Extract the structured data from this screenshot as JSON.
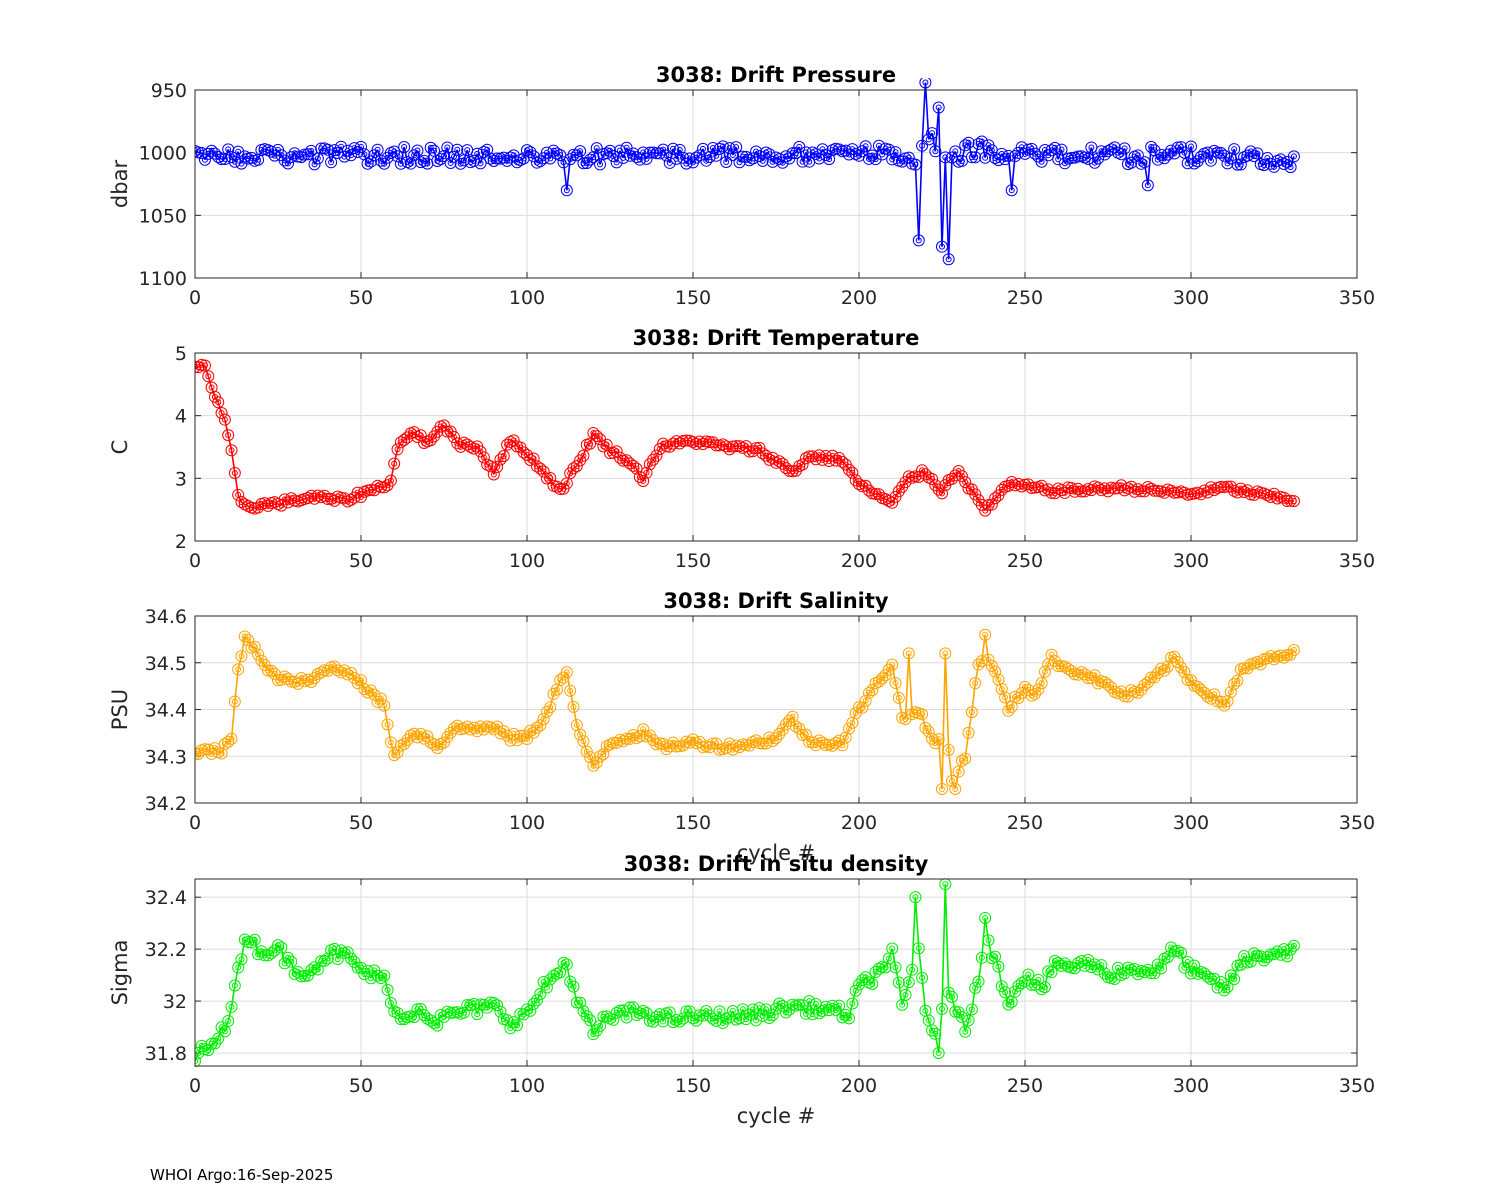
{
  "footer": "WHOI Argo:16-Sep-2025",
  "chart_data": [
    {
      "type": "line",
      "title": "3038: Drift Pressure",
      "xlabel": "",
      "ylabel": "dbar",
      "xlim": [
        0,
        350
      ],
      "ylim": [
        950,
        1100
      ],
      "reversed_y": true,
      "xticks": [
        0,
        50,
        100,
        150,
        200,
        250,
        300,
        350
      ],
      "yticks": [
        950,
        1000,
        1050,
        1100
      ],
      "ytick_labels": [
        "950",
        "1000",
        "1050",
        "1100"
      ],
      "color": "#0000ff",
      "grid": true,
      "series": {
        "cycles": [
          0,
          331
        ],
        "base_curve": [
          [
            0,
            1004
          ],
          [
            50,
            1002
          ],
          [
            100,
            1003
          ],
          [
            150,
            1002
          ],
          [
            200,
            1001
          ],
          [
            210,
            1000
          ],
          [
            218,
            1005
          ],
          [
            222,
            990
          ],
          [
            226,
            1005
          ],
          [
            235,
            997
          ],
          [
            250,
            1003
          ],
          [
            300,
            1002
          ],
          [
            331,
            1006
          ]
        ],
        "noise": 7,
        "spikes": [
          [
            218,
            1070
          ],
          [
            220,
            944
          ],
          [
            225,
            1075
          ],
          [
            227,
            1085
          ],
          [
            224,
            964
          ],
          [
            246,
            1030
          ],
          [
            112,
            1030
          ],
          [
            287,
            1026
          ]
        ]
      }
    },
    {
      "type": "line",
      "title": "3038: Drift Temperature",
      "xlabel": "",
      "ylabel": "C",
      "xlim": [
        0,
        350
      ],
      "ylim": [
        2,
        5
      ],
      "reversed_y": false,
      "xticks": [
        0,
        50,
        100,
        150,
        200,
        250,
        300,
        350
      ],
      "yticks": [
        2,
        3,
        4,
        5
      ],
      "ytick_labels": [
        "2",
        "3",
        "4",
        "5"
      ],
      "color": "#ff0000",
      "grid": true,
      "series": {
        "cycles": [
          0,
          331
        ],
        "base_curve": [
          [
            0,
            4.8
          ],
          [
            3,
            4.8
          ],
          [
            6,
            4.3
          ],
          [
            9,
            3.9
          ],
          [
            11,
            3.4
          ],
          [
            13,
            2.7
          ],
          [
            16,
            2.55
          ],
          [
            25,
            2.6
          ],
          [
            35,
            2.7
          ],
          [
            45,
            2.65
          ],
          [
            55,
            2.85
          ],
          [
            59,
            2.95
          ],
          [
            61,
            3.5
          ],
          [
            66,
            3.75
          ],
          [
            70,
            3.55
          ],
          [
            74,
            3.85
          ],
          [
            80,
            3.55
          ],
          [
            85,
            3.5
          ],
          [
            90,
            3.1
          ],
          [
            95,
            3.6
          ],
          [
            100,
            3.4
          ],
          [
            105,
            3.1
          ],
          [
            110,
            2.8
          ],
          [
            115,
            3.2
          ],
          [
            120,
            3.7
          ],
          [
            125,
            3.45
          ],
          [
            130,
            3.3
          ],
          [
            135,
            3.0
          ],
          [
            140,
            3.5
          ],
          [
            150,
            3.6
          ],
          [
            160,
            3.5
          ],
          [
            170,
            3.45
          ],
          [
            180,
            3.1
          ],
          [
            185,
            3.35
          ],
          [
            195,
            3.3
          ],
          [
            200,
            2.9
          ],
          [
            210,
            2.6
          ],
          [
            215,
            3.0
          ],
          [
            220,
            3.1
          ],
          [
            225,
            2.8
          ],
          [
            230,
            3.15
          ],
          [
            235,
            2.7
          ],
          [
            238,
            2.5
          ],
          [
            245,
            2.9
          ],
          [
            260,
            2.8
          ],
          [
            280,
            2.85
          ],
          [
            300,
            2.75
          ],
          [
            310,
            2.85
          ],
          [
            320,
            2.75
          ],
          [
            331,
            2.65
          ]
        ],
        "noise": 0.05,
        "spikes": []
      }
    },
    {
      "type": "line",
      "title": "3038: Drift Salinity",
      "xlabel": "cycle #",
      "ylabel": "PSU",
      "xlim": [
        0,
        350
      ],
      "ylim": [
        34.2,
        34.6
      ],
      "reversed_y": false,
      "xticks": [
        0,
        50,
        100,
        150,
        200,
        250,
        300,
        350
      ],
      "yticks": [
        34.2,
        34.3,
        34.4,
        34.5,
        34.6
      ],
      "ytick_labels": [
        "34.2",
        "34.3",
        "34.4",
        "34.5",
        "34.6"
      ],
      "color": "#ffa500",
      "grid": true,
      "series": {
        "cycles": [
          0,
          331
        ],
        "base_curve": [
          [
            0,
            34.31
          ],
          [
            8,
            34.31
          ],
          [
            11,
            34.34
          ],
          [
            13,
            34.48
          ],
          [
            15,
            34.56
          ],
          [
            18,
            34.53
          ],
          [
            22,
            34.48
          ],
          [
            28,
            34.46
          ],
          [
            35,
            34.46
          ],
          [
            40,
            34.49
          ],
          [
            47,
            34.48
          ],
          [
            52,
            34.44
          ],
          [
            57,
            34.41
          ],
          [
            60,
            34.3
          ],
          [
            65,
            34.35
          ],
          [
            70,
            34.34
          ],
          [
            73,
            34.32
          ],
          [
            78,
            34.36
          ],
          [
            90,
            34.36
          ],
          [
            95,
            34.34
          ],
          [
            100,
            34.34
          ],
          [
            105,
            34.38
          ],
          [
            110,
            34.46
          ],
          [
            112,
            34.48
          ],
          [
            115,
            34.36
          ],
          [
            120,
            34.28
          ],
          [
            125,
            34.33
          ],
          [
            135,
            34.35
          ],
          [
            140,
            34.32
          ],
          [
            150,
            34.33
          ],
          [
            160,
            34.32
          ],
          [
            170,
            34.33
          ],
          [
            175,
            34.34
          ],
          [
            180,
            34.38
          ],
          [
            185,
            34.33
          ],
          [
            195,
            34.33
          ],
          [
            200,
            34.4
          ],
          [
            205,
            34.45
          ],
          [
            210,
            34.5
          ],
          [
            213,
            34.38
          ],
          [
            218,
            34.4
          ],
          [
            223,
            34.32
          ],
          [
            226,
            34.38
          ],
          [
            228,
            34.25
          ],
          [
            232,
            34.3
          ],
          [
            236,
            34.5
          ],
          [
            240,
            34.5
          ],
          [
            245,
            34.4
          ],
          [
            250,
            34.45
          ],
          [
            253,
            34.43
          ],
          [
            258,
            34.51
          ],
          [
            262,
            34.49
          ],
          [
            270,
            34.47
          ],
          [
            275,
            34.45
          ],
          [
            280,
            34.43
          ],
          [
            285,
            34.44
          ],
          [
            295,
            34.51
          ],
          [
            300,
            34.46
          ],
          [
            310,
            34.41
          ],
          [
            315,
            34.48
          ],
          [
            320,
            34.5
          ],
          [
            331,
            34.52
          ]
        ],
        "noise": 0.008,
        "spikes": [
          [
            225,
            34.23
          ],
          [
            229,
            34.23
          ],
          [
            238,
            34.56
          ],
          [
            215,
            34.52
          ],
          [
            226,
            34.52
          ]
        ]
      }
    },
    {
      "type": "line",
      "title": "3038: Drift in situ density",
      "xlabel": "cycle #",
      "ylabel": "Sigma",
      "xlim": [
        0,
        350
      ],
      "ylim": [
        31.75,
        32.47
      ],
      "reversed_y": false,
      "xticks": [
        0,
        50,
        100,
        150,
        200,
        250,
        300,
        350
      ],
      "yticks": [
        31.8,
        32,
        32.2,
        32.4
      ],
      "ytick_labels": [
        "31.8",
        "32",
        "32.2",
        "32.4"
      ],
      "color": "#00ee00",
      "grid": true,
      "series": {
        "cycles": [
          0,
          331
        ],
        "base_curve": [
          [
            0,
            31.78
          ],
          [
            5,
            31.85
          ],
          [
            10,
            31.9
          ],
          [
            13,
            32.15
          ],
          [
            16,
            32.25
          ],
          [
            20,
            32.19
          ],
          [
            25,
            32.2
          ],
          [
            30,
            32.12
          ],
          [
            35,
            32.12
          ],
          [
            40,
            32.18
          ],
          [
            45,
            32.18
          ],
          [
            50,
            32.12
          ],
          [
            57,
            32.08
          ],
          [
            62,
            31.92
          ],
          [
            68,
            31.98
          ],
          [
            72,
            31.92
          ],
          [
            80,
            31.96
          ],
          [
            90,
            31.98
          ],
          [
            95,
            31.92
          ],
          [
            100,
            31.95
          ],
          [
            105,
            32.05
          ],
          [
            112,
            32.15
          ],
          [
            115,
            32.0
          ],
          [
            120,
            31.88
          ],
          [
            125,
            31.94
          ],
          [
            135,
            31.96
          ],
          [
            140,
            31.93
          ],
          [
            150,
            31.94
          ],
          [
            160,
            31.94
          ],
          [
            170,
            31.95
          ],
          [
            180,
            31.98
          ],
          [
            190,
            31.97
          ],
          [
            197,
            31.95
          ],
          [
            200,
            32.05
          ],
          [
            205,
            32.1
          ],
          [
            210,
            32.18
          ],
          [
            213,
            31.98
          ],
          [
            218,
            32.2
          ],
          [
            220,
            31.98
          ],
          [
            223,
            31.85
          ],
          [
            227,
            32.05
          ],
          [
            232,
            31.88
          ],
          [
            236,
            32.1
          ],
          [
            238,
            32.25
          ],
          [
            242,
            32.12
          ],
          [
            245,
            32.0
          ],
          [
            250,
            32.1
          ],
          [
            255,
            32.05
          ],
          [
            260,
            32.15
          ],
          [
            265,
            32.13
          ],
          [
            270,
            32.15
          ],
          [
            275,
            32.1
          ],
          [
            280,
            32.12
          ],
          [
            290,
            32.12
          ],
          [
            295,
            32.2
          ],
          [
            300,
            32.12
          ],
          [
            305,
            32.08
          ],
          [
            311,
            32.05
          ],
          [
            315,
            32.15
          ],
          [
            320,
            32.17
          ],
          [
            331,
            32.2
          ]
        ],
        "noise": 0.025,
        "spikes": [
          [
            217,
            32.4
          ],
          [
            226,
            32.45
          ],
          [
            238,
            32.32
          ],
          [
            224,
            31.8
          ]
        ]
      }
    }
  ]
}
